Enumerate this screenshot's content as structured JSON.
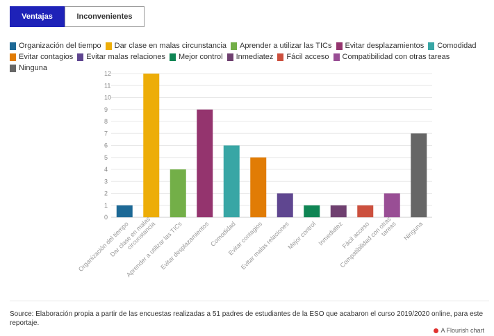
{
  "tabs": [
    {
      "label": "Ventajas"
    },
    {
      "label": "Inconvenientes"
    }
  ],
  "legend": [
    {
      "label": "Organización del tiempo",
      "color": "#1d6996"
    },
    {
      "label": "Dar clase en malas circunstancia",
      "color": "#edad08"
    },
    {
      "label": "Aprender a utilizar las TICs",
      "color": "#73af48"
    },
    {
      "label": "Evitar desplazamientos",
      "color": "#94346e"
    },
    {
      "label": "Comodidad",
      "color": "#38a6a5"
    },
    {
      "label": "Evitar contagios",
      "color": "#e17c05"
    },
    {
      "label": "Evitar malas relaciones",
      "color": "#5f4690"
    },
    {
      "label": "Mejor control",
      "color": "#0f8554"
    },
    {
      "label": "Inmediatez",
      "color": "#6f4070"
    },
    {
      "label": "Fácil acceso",
      "color": "#cc503e"
    },
    {
      "label": "Compatibilidad con otras tareas",
      "color": "#994e95"
    },
    {
      "label": "Ninguna",
      "color": "#666666"
    }
  ],
  "chart_data": {
    "type": "bar",
    "categories": [
      "Organización del tiempo",
      "Dar clase en malas circunstancia",
      "Aprender a utilizar las TICs",
      "Evitar desplazamientos",
      "Comodidad",
      "Evitar contagios",
      "Evitar malas relaciones",
      "Mejor control",
      "Inmediatez",
      "Fácil acceso",
      "Compatibilidad con otras tareas",
      "Ninguna"
    ],
    "category_tick_labels": [
      [
        "Organización del tiempo"
      ],
      [
        "Dar clase en malas",
        "circunstancia"
      ],
      [
        "Aprender a utilizar las TICs"
      ],
      [
        "Evitar desplazamientos"
      ],
      [
        "Comodidad"
      ],
      [
        "Evitar contagios"
      ],
      [
        "Evitar malas relaciones"
      ],
      [
        "Mejor control"
      ],
      [
        "Inmediatez"
      ],
      [
        "Fácil acceso"
      ],
      [
        "Compatibilidad con otras",
        "tareas"
      ],
      [
        "Ninguna"
      ]
    ],
    "values": [
      1,
      12,
      4,
      9,
      6,
      5,
      2,
      1,
      1,
      1,
      2,
      7
    ],
    "colors": [
      "#1d6996",
      "#edad08",
      "#73af48",
      "#94346e",
      "#38a6a5",
      "#e17c05",
      "#5f4690",
      "#0f8554",
      "#6f4070",
      "#cc503e",
      "#994e95",
      "#666666"
    ],
    "ylim": [
      0,
      12
    ],
    "yticks": [
      0,
      1,
      2,
      3,
      4,
      5,
      6,
      7,
      8,
      9,
      10,
      11,
      12
    ],
    "grid": true,
    "title": "",
    "xlabel": "",
    "ylabel": ""
  },
  "source_text": "Source: Elaboración propia a partir de las encuestas realizadas a 51 padres de estudiantes de la ESO que acabaron el curso 2019/2020 online, para este reportaje.",
  "credit_text": "A Flourish chart"
}
